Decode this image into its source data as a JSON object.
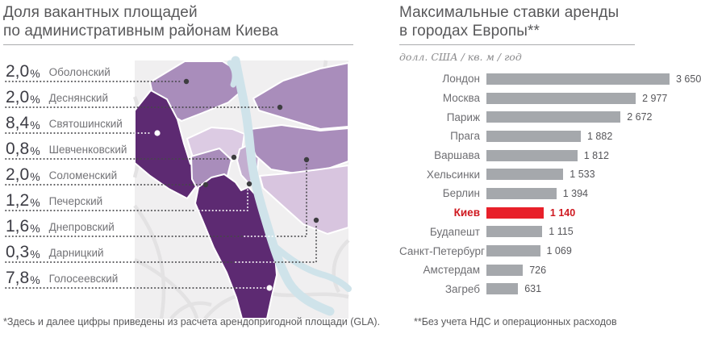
{
  "left_panel": {
    "title_line1": "Доля вакантных площадей",
    "title_line2": "по административным районам Киева",
    "footnote": "*Здесь и далее цифры приведены из расчета арендопригодной площади (GLA)."
  },
  "right_panel": {
    "title_line1": "Максимальные ставки аренды",
    "title_line2": "в городах Европы**",
    "subtitle": "долл. США / кв. м / год",
    "footnote": "**Без учета НДС и операционных расходов"
  },
  "colors": {
    "accent_red": "#e8202a",
    "bar_gray": "#a5a8ac",
    "map_dark_purple": "#5d2a72",
    "map_medium_purple": "#a98dbb",
    "map_light_purple": "#dccbe3",
    "river_blue": "#cfe3ea"
  },
  "chart_data": [
    {
      "id": "kyiv-vacancy-by-district",
      "type": "choropleth_map",
      "title": "Доля вакантных площадей по административным районам Киева",
      "unit": "%",
      "categories": [
        "Оболонский",
        "Деснянский",
        "Святошинский",
        "Шевченковский",
        "Соломенский",
        "Печерский",
        "Днепровский",
        "Дарницкий",
        "Голосеевский"
      ],
      "values": [
        2.0,
        2.0,
        8.4,
        0.8,
        2.0,
        1.2,
        1.6,
        0.3,
        7.8
      ],
      "value_labels": [
        "2,0",
        "2,0",
        "8,4",
        "0,8",
        "2,0",
        "1,2",
        "1,6",
        "0,3",
        "7,8"
      ],
      "map_fills": [
        "#a98dbb",
        "#a98dbb",
        "#5d2a72",
        "#dccbe3",
        "#a98dbb",
        "#c3aed0",
        "#a98dbb",
        "#d8c5df",
        "#5d2a72"
      ]
    },
    {
      "id": "max-rents-europe",
      "type": "bar",
      "orientation": "horizontal",
      "title": "Максимальные ставки аренды в городах Европы**",
      "unit": "долл. США / кв. м / год",
      "categories": [
        "Лондон",
        "Москва",
        "Париж",
        "Прага",
        "Варшава",
        "Хельсинки",
        "Берлин",
        "Киев",
        "Будапешт",
        "Санкт-Петербург",
        "Амстердам",
        "Загреб"
      ],
      "values": [
        3650,
        2977,
        2672,
        1882,
        1812,
        1533,
        1394,
        1140,
        1115,
        1069,
        726,
        631
      ],
      "value_labels": [
        "3 650",
        "2 977",
        "2 672",
        "1 882",
        "1 812",
        "1 533",
        "1 394",
        "1 140",
        "1 115",
        "1 069",
        "726",
        "631"
      ],
      "highlight_city": "Киев",
      "highlight_index": 7,
      "xlim": [
        0,
        3650
      ],
      "grid": false,
      "legend": false
    }
  ]
}
